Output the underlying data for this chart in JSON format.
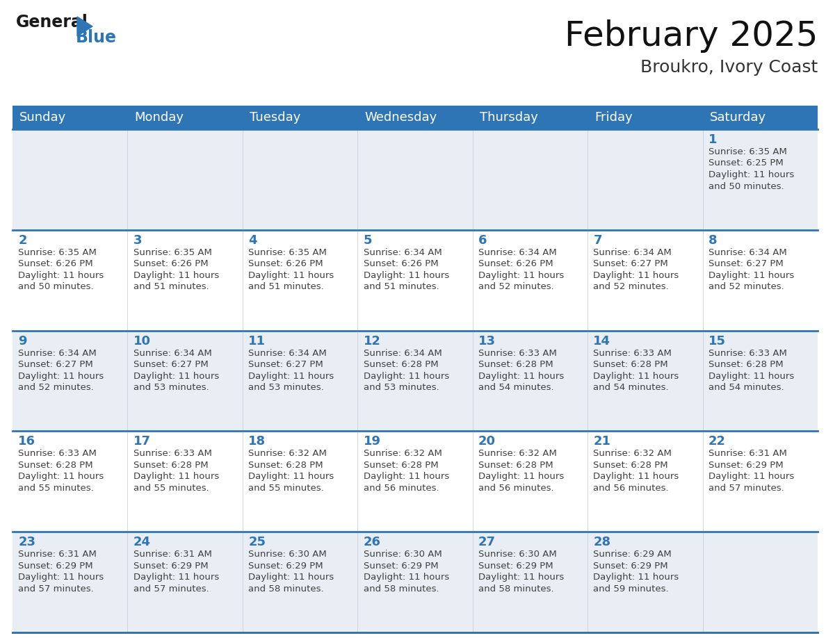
{
  "title": "February 2025",
  "subtitle": "Broukro, Ivory Coast",
  "header_bg": "#2E75B6",
  "header_text_color": "#FFFFFF",
  "odd_row_bg": "#E9EEF4",
  "even_row_bg": "#FFFFFF",
  "border_color": "#2E75B6",
  "day_number_color": "#2E75B6",
  "cell_text_color": "#404040",
  "days_of_week": [
    "Sunday",
    "Monday",
    "Tuesday",
    "Wednesday",
    "Thursday",
    "Friday",
    "Saturday"
  ],
  "calendar": [
    [
      null,
      null,
      null,
      null,
      null,
      null,
      {
        "day": 1,
        "sunrise": "6:35 AM",
        "sunset": "6:25 PM",
        "daylight": "11 hours and 50 minutes."
      }
    ],
    [
      {
        "day": 2,
        "sunrise": "6:35 AM",
        "sunset": "6:26 PM",
        "daylight": "11 hours and 50 minutes."
      },
      {
        "day": 3,
        "sunrise": "6:35 AM",
        "sunset": "6:26 PM",
        "daylight": "11 hours and 51 minutes."
      },
      {
        "day": 4,
        "sunrise": "6:35 AM",
        "sunset": "6:26 PM",
        "daylight": "11 hours and 51 minutes."
      },
      {
        "day": 5,
        "sunrise": "6:34 AM",
        "sunset": "6:26 PM",
        "daylight": "11 hours and 51 minutes."
      },
      {
        "day": 6,
        "sunrise": "6:34 AM",
        "sunset": "6:26 PM",
        "daylight": "11 hours and 52 minutes."
      },
      {
        "day": 7,
        "sunrise": "6:34 AM",
        "sunset": "6:27 PM",
        "daylight": "11 hours and 52 minutes."
      },
      {
        "day": 8,
        "sunrise": "6:34 AM",
        "sunset": "6:27 PM",
        "daylight": "11 hours and 52 minutes."
      }
    ],
    [
      {
        "day": 9,
        "sunrise": "6:34 AM",
        "sunset": "6:27 PM",
        "daylight": "11 hours and 52 minutes."
      },
      {
        "day": 10,
        "sunrise": "6:34 AM",
        "sunset": "6:27 PM",
        "daylight": "11 hours and 53 minutes."
      },
      {
        "day": 11,
        "sunrise": "6:34 AM",
        "sunset": "6:27 PM",
        "daylight": "11 hours and 53 minutes."
      },
      {
        "day": 12,
        "sunrise": "6:34 AM",
        "sunset": "6:28 PM",
        "daylight": "11 hours and 53 minutes."
      },
      {
        "day": 13,
        "sunrise": "6:33 AM",
        "sunset": "6:28 PM",
        "daylight": "11 hours and 54 minutes."
      },
      {
        "day": 14,
        "sunrise": "6:33 AM",
        "sunset": "6:28 PM",
        "daylight": "11 hours and 54 minutes."
      },
      {
        "day": 15,
        "sunrise": "6:33 AM",
        "sunset": "6:28 PM",
        "daylight": "11 hours and 54 minutes."
      }
    ],
    [
      {
        "day": 16,
        "sunrise": "6:33 AM",
        "sunset": "6:28 PM",
        "daylight": "11 hours and 55 minutes."
      },
      {
        "day": 17,
        "sunrise": "6:33 AM",
        "sunset": "6:28 PM",
        "daylight": "11 hours and 55 minutes."
      },
      {
        "day": 18,
        "sunrise": "6:32 AM",
        "sunset": "6:28 PM",
        "daylight": "11 hours and 55 minutes."
      },
      {
        "day": 19,
        "sunrise": "6:32 AM",
        "sunset": "6:28 PM",
        "daylight": "11 hours and 56 minutes."
      },
      {
        "day": 20,
        "sunrise": "6:32 AM",
        "sunset": "6:28 PM",
        "daylight": "11 hours and 56 minutes."
      },
      {
        "day": 21,
        "sunrise": "6:32 AM",
        "sunset": "6:28 PM",
        "daylight": "11 hours and 56 minutes."
      },
      {
        "day": 22,
        "sunrise": "6:31 AM",
        "sunset": "6:29 PM",
        "daylight": "11 hours and 57 minutes."
      }
    ],
    [
      {
        "day": 23,
        "sunrise": "6:31 AM",
        "sunset": "6:29 PM",
        "daylight": "11 hours and 57 minutes."
      },
      {
        "day": 24,
        "sunrise": "6:31 AM",
        "sunset": "6:29 PM",
        "daylight": "11 hours and 57 minutes."
      },
      {
        "day": 25,
        "sunrise": "6:30 AM",
        "sunset": "6:29 PM",
        "daylight": "11 hours and 58 minutes."
      },
      {
        "day": 26,
        "sunrise": "6:30 AM",
        "sunset": "6:29 PM",
        "daylight": "11 hours and 58 minutes."
      },
      {
        "day": 27,
        "sunrise": "6:30 AM",
        "sunset": "6:29 PM",
        "daylight": "11 hours and 58 minutes."
      },
      {
        "day": 28,
        "sunrise": "6:29 AM",
        "sunset": "6:29 PM",
        "daylight": "11 hours and 59 minutes."
      },
      null
    ]
  ],
  "logo_general_color": "#1a1a1a",
  "logo_blue_color": "#2E75B6",
  "title_fontsize": 36,
  "subtitle_fontsize": 18,
  "header_fontsize": 13,
  "day_num_fontsize": 13,
  "cell_text_fontsize": 9.5
}
